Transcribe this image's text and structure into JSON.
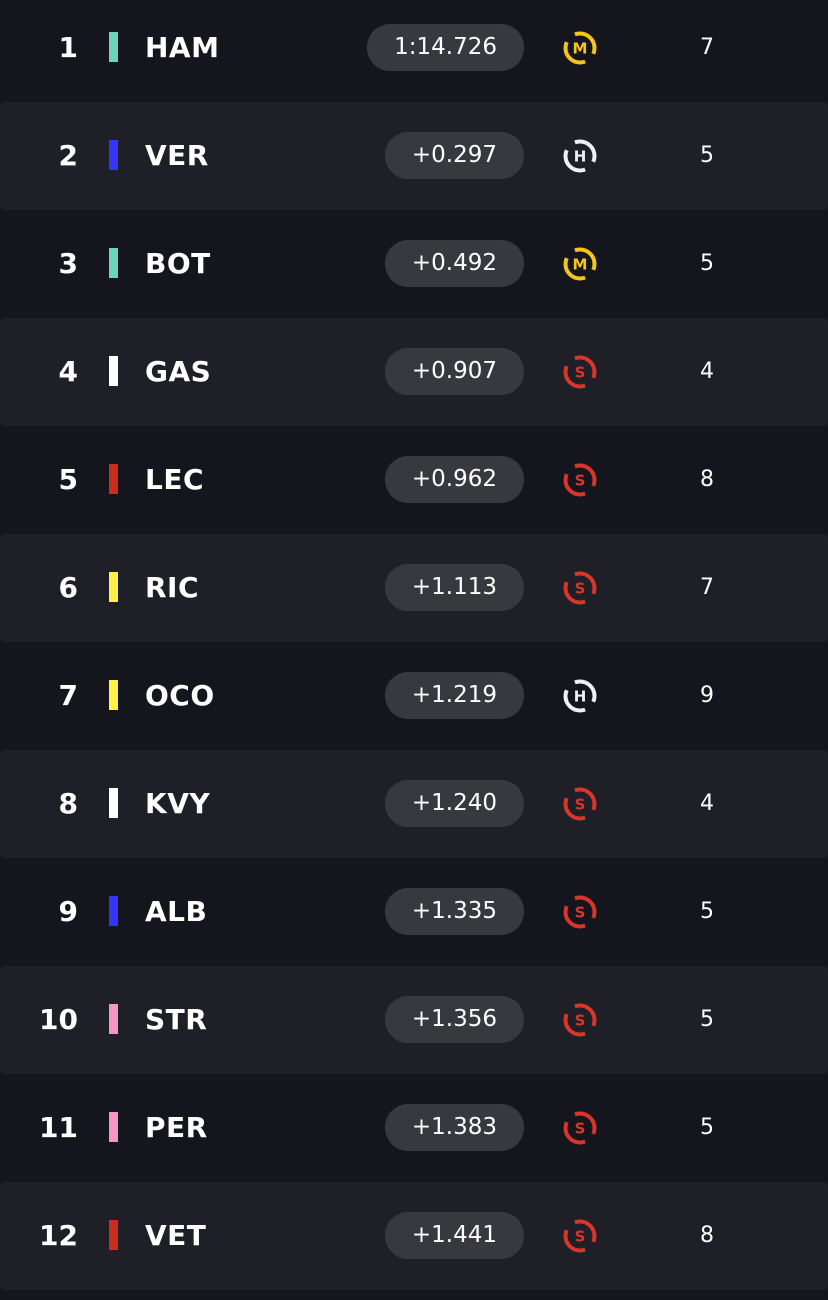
{
  "results": [
    {
      "position": "1",
      "driver": "HAM",
      "team_color": "#6CD3BF",
      "time": "1:14.726",
      "tyre": "medium",
      "tyre_letter": "M",
      "tyre_color": "#F5C518",
      "laps": "7"
    },
    {
      "position": "2",
      "driver": "VER",
      "team_color": "#3237F5",
      "time": "+0.297",
      "tyre": "hard",
      "tyre_letter": "H",
      "tyre_color": "#F0F0F0",
      "laps": "5"
    },
    {
      "position": "3",
      "driver": "BOT",
      "team_color": "#6CD3BF",
      "time": "+0.492",
      "tyre": "medium",
      "tyre_letter": "M",
      "tyre_color": "#F5C518",
      "laps": "5"
    },
    {
      "position": "4",
      "driver": "GAS",
      "team_color": "#FFFFFF",
      "time": "+0.907",
      "tyre": "soft",
      "tyre_letter": "S",
      "tyre_color": "#D9352B",
      "laps": "4"
    },
    {
      "position": "5",
      "driver": "LEC",
      "team_color": "#C92D1F",
      "time": "+0.962",
      "tyre": "soft",
      "tyre_letter": "S",
      "tyre_color": "#D9352B",
      "laps": "8"
    },
    {
      "position": "6",
      "driver": "RIC",
      "team_color": "#FFF04A",
      "time": "+1.113",
      "tyre": "soft",
      "tyre_letter": "S",
      "tyre_color": "#D9352B",
      "laps": "7"
    },
    {
      "position": "7",
      "driver": "OCO",
      "team_color": "#FFF04A",
      "time": "+1.219",
      "tyre": "hard",
      "tyre_letter": "H",
      "tyre_color": "#F0F0F0",
      "laps": "9"
    },
    {
      "position": "8",
      "driver": "KVY",
      "team_color": "#FFFFFF",
      "time": "+1.240",
      "tyre": "soft",
      "tyre_letter": "S",
      "tyre_color": "#D9352B",
      "laps": "4"
    },
    {
      "position": "9",
      "driver": "ALB",
      "team_color": "#3237F5",
      "time": "+1.335",
      "tyre": "soft",
      "tyre_letter": "S",
      "tyre_color": "#D9352B",
      "laps": "5"
    },
    {
      "position": "10",
      "driver": "STR",
      "team_color": "#F297C6",
      "time": "+1.356",
      "tyre": "soft",
      "tyre_letter": "S",
      "tyre_color": "#D9352B",
      "laps": "5"
    },
    {
      "position": "11",
      "driver": "PER",
      "team_color": "#F297C6",
      "time": "+1.383",
      "tyre": "soft",
      "tyre_letter": "S",
      "tyre_color": "#D9352B",
      "laps": "5"
    },
    {
      "position": "12",
      "driver": "VET",
      "team_color": "#C92D1F",
      "time": "+1.441",
      "tyre": "soft",
      "tyre_letter": "S",
      "tyre_color": "#D9352B",
      "laps": "8"
    }
  ],
  "colors": {
    "background": "#15151E",
    "row_alt": "#1F1F27",
    "pill": "#38383F",
    "text": "#FFFFFF"
  }
}
